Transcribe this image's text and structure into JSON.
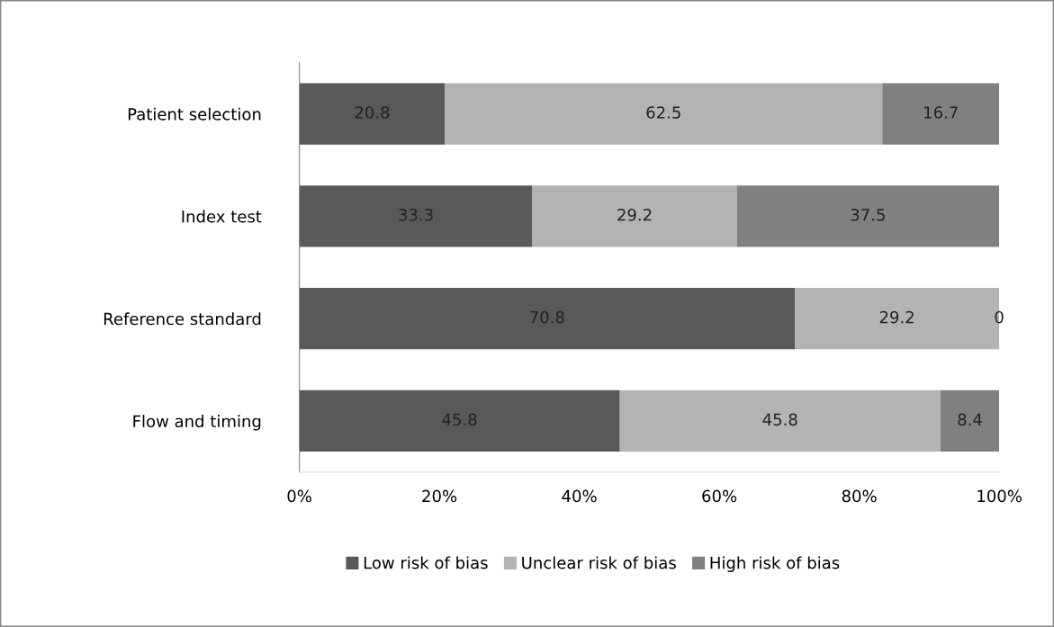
{
  "chart_data": {
    "type": "bar",
    "orientation": "horizontal",
    "stacked": true,
    "data_labels": true,
    "legend": "bottom",
    "grid": false,
    "categories": [
      "Patient selection",
      "Index test",
      "Reference standard",
      "Flow and timing"
    ],
    "series": [
      {
        "name": "Low risk of bias",
        "color": "#595959",
        "values": [
          20.8,
          33.3,
          70.8,
          45.8
        ]
      },
      {
        "name": "Unclear risk of bias",
        "color": "#b3b3b3",
        "values": [
          62.5,
          29.2,
          29.2,
          45.8
        ]
      },
      {
        "name": "High risk of bias",
        "color": "#808080",
        "values": [
          16.7,
          37.5,
          0,
          8.4
        ]
      }
    ],
    "xlim": [
      0,
      100
    ],
    "xticks": [
      {
        "value": 0,
        "label": "0%"
      },
      {
        "value": 20,
        "label": "20%"
      },
      {
        "value": 40,
        "label": "40%"
      },
      {
        "value": 60,
        "label": "60%"
      },
      {
        "value": 80,
        "label": "80%"
      },
      {
        "value": 100,
        "label": "100%"
      }
    ]
  }
}
